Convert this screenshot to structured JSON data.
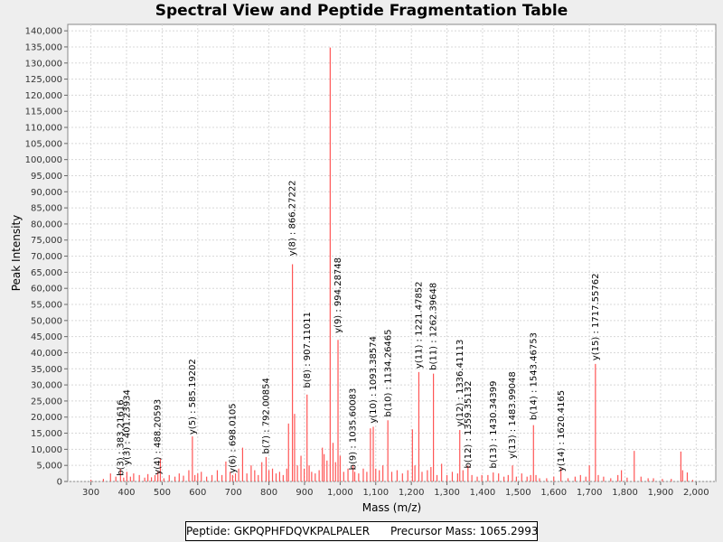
{
  "chart_data": {
    "type": "bar",
    "title": "Spectral View and Peptide Fragmentation Table",
    "xlabel": "Mass (m/z)",
    "ylabel": "Peak Intensity",
    "xlim": [
      235,
      2055
    ],
    "ylim": [
      0,
      142000
    ],
    "xticks": [
      300,
      400,
      500,
      600,
      700,
      800,
      900,
      1000,
      1100,
      1200,
      1300,
      1400,
      1500,
      1600,
      1700,
      1800,
      1900,
      2000
    ],
    "yticks": [
      0,
      5000,
      10000,
      15000,
      20000,
      25000,
      30000,
      35000,
      40000,
      45000,
      50000,
      55000,
      60000,
      65000,
      70000,
      75000,
      80000,
      85000,
      90000,
      95000,
      100000,
      105000,
      110000,
      115000,
      120000,
      125000,
      130000,
      135000,
      140000
    ],
    "grid": true,
    "color": "#ff5555",
    "peaks": [
      [
        300,
        500
      ],
      [
        335,
        800
      ],
      [
        355,
        2500
      ],
      [
        370,
        1500
      ],
      [
        383,
        4000
      ],
      [
        392,
        1200
      ],
      [
        401,
        3000
      ],
      [
        411,
        1500
      ],
      [
        420,
        2500
      ],
      [
        436,
        2000
      ],
      [
        451,
        1200
      ],
      [
        460,
        2300
      ],
      [
        470,
        1300
      ],
      [
        480,
        2000
      ],
      [
        488,
        3000
      ],
      [
        495,
        7200
      ],
      [
        505,
        1000
      ],
      [
        520,
        2000
      ],
      [
        536,
        1500
      ],
      [
        548,
        2500
      ],
      [
        560,
        1800
      ],
      [
        575,
        3500
      ],
      [
        585,
        14000
      ],
      [
        592,
        2000
      ],
      [
        600,
        2500
      ],
      [
        610,
        3000
      ],
      [
        625,
        1500
      ],
      [
        640,
        2000
      ],
      [
        655,
        3500
      ],
      [
        668,
        2000
      ],
      [
        679,
        6200
      ],
      [
        691,
        3000
      ],
      [
        698,
        2000
      ],
      [
        706,
        2500
      ],
      [
        715,
        4000
      ],
      [
        726,
        10500
      ],
      [
        738,
        2500
      ],
      [
        750,
        5000
      ],
      [
        760,
        3500
      ],
      [
        770,
        2000
      ],
      [
        780,
        6000
      ],
      [
        792,
        7600
      ],
      [
        800,
        3500
      ],
      [
        810,
        4000
      ],
      [
        820,
        2500
      ],
      [
        830,
        3000
      ],
      [
        840,
        2000
      ],
      [
        850,
        4000
      ],
      [
        855,
        18000
      ],
      [
        866,
        67500
      ],
      [
        872,
        21000
      ],
      [
        880,
        5000
      ],
      [
        890,
        8000
      ],
      [
        899,
        4000
      ],
      [
        907,
        27000
      ],
      [
        913,
        5000
      ],
      [
        920,
        3000
      ],
      [
        930,
        2500
      ],
      [
        941,
        3500
      ],
      [
        950,
        10500
      ],
      [
        955,
        8500
      ],
      [
        963,
        6500
      ],
      [
        972,
        134800
      ],
      [
        980,
        12000
      ],
      [
        987,
        6000
      ],
      [
        994,
        44000
      ],
      [
        1000,
        8000
      ],
      [
        1010,
        3000
      ],
      [
        1022,
        4000
      ],
      [
        1036,
        5000
      ],
      [
        1041,
        3000
      ],
      [
        1052,
        2500
      ],
      [
        1065,
        4000
      ],
      [
        1075,
        3000
      ],
      [
        1085,
        16500
      ],
      [
        1093,
        17000
      ],
      [
        1100,
        4000
      ],
      [
        1110,
        3500
      ],
      [
        1120,
        5000
      ],
      [
        1134,
        19000
      ],
      [
        1145,
        3000
      ],
      [
        1160,
        3500
      ],
      [
        1175,
        2500
      ],
      [
        1190,
        3500
      ],
      [
        1203,
        16200
      ],
      [
        1210,
        5000
      ],
      [
        1221,
        34000
      ],
      [
        1230,
        3000
      ],
      [
        1245,
        3500
      ],
      [
        1255,
        4500
      ],
      [
        1262,
        33500
      ],
      [
        1272,
        2000
      ],
      [
        1285,
        5500
      ],
      [
        1300,
        2000
      ],
      [
        1315,
        3000
      ],
      [
        1330,
        2500
      ],
      [
        1336,
        16000
      ],
      [
        1345,
        3500
      ],
      [
        1359,
        5000
      ],
      [
        1370,
        2000
      ],
      [
        1385,
        1500
      ],
      [
        1398,
        2000
      ],
      [
        1415,
        2000
      ],
      [
        1430,
        2800
      ],
      [
        1445,
        2500
      ],
      [
        1460,
        1500
      ],
      [
        1472,
        2000
      ],
      [
        1484,
        5000
      ],
      [
        1495,
        1500
      ],
      [
        1510,
        2500
      ],
      [
        1525,
        1500
      ],
      [
        1535,
        2000
      ],
      [
        1543,
        17500
      ],
      [
        1550,
        2000
      ],
      [
        1560,
        1000
      ],
      [
        1580,
        1000
      ],
      [
        1600,
        1500
      ],
      [
        1620,
        4000
      ],
      [
        1640,
        1000
      ],
      [
        1660,
        1500
      ],
      [
        1675,
        2000
      ],
      [
        1690,
        1500
      ],
      [
        1700,
        5000
      ],
      [
        1717,
        36500
      ],
      [
        1725,
        2000
      ],
      [
        1740,
        1500
      ],
      [
        1760,
        1000
      ],
      [
        1780,
        2000
      ],
      [
        1790,
        3500
      ],
      [
        1806,
        1200
      ],
      [
        1826,
        9500
      ],
      [
        1845,
        1500
      ],
      [
        1865,
        1000
      ],
      [
        1880,
        1000
      ],
      [
        1905,
        800
      ],
      [
        1930,
        800
      ],
      [
        1957,
        9300
      ],
      [
        1962,
        3500
      ],
      [
        1975,
        2800
      ],
      [
        1990,
        500
      ]
    ],
    "annotations": [
      {
        "label": "b(3) : 383.21616",
        "x": 383.2,
        "y": 1200
      },
      {
        "label": "y(3) : 401.23934",
        "x": 401.2,
        "y": 4500
      },
      {
        "label": "y(4) : 488.20593",
        "x": 488.2,
        "y": 1500
      },
      {
        "label": "y(5) : 585.19202",
        "x": 585.2,
        "y": 14000
      },
      {
        "label": "y(6) : 698.0105",
        "x": 698.0,
        "y": 2000
      },
      {
        "label": "b(7) : 792.00854",
        "x": 792.0,
        "y": 8000
      },
      {
        "label": "y(8) : 866.27222",
        "x": 866.3,
        "y": 69500
      },
      {
        "label": "b(8) : 907.11011",
        "x": 907.1,
        "y": 28500
      },
      {
        "label": "y(9) : 994.28748",
        "x": 994.3,
        "y": 45500
      },
      {
        "label": "b(9) : 1035.60083",
        "x": 1035.6,
        "y": 3000
      },
      {
        "label": "y(10) : 1093.38574",
        "x": 1093.4,
        "y": 17500
      },
      {
        "label": "b(10) : 1134.26465",
        "x": 1134.3,
        "y": 19500
      },
      {
        "label": "y(11) : 1221.47852",
        "x": 1221.5,
        "y": 34500
      },
      {
        "label": "b(11) : 1262.39648",
        "x": 1262.4,
        "y": 34000
      },
      {
        "label": "y(12) : 1336.41113",
        "x": 1336.4,
        "y": 16500
      },
      {
        "label": "b(12) : 1359.35132",
        "x": 1359.4,
        "y": 3500
      },
      {
        "label": "b(13) : 1430.34399",
        "x": 1430.3,
        "y": 3500
      },
      {
        "label": "y(13) : 1483.99048",
        "x": 1484.0,
        "y": 6500
      },
      {
        "label": "b(14) : 1543.46753",
        "x": 1543.5,
        "y": 18500
      },
      {
        "label": "y(14) : 1620.4165",
        "x": 1620.4,
        "y": 2500
      },
      {
        "label": "y(15) : 1717.55762",
        "x": 1717.6,
        "y": 37000
      }
    ]
  },
  "footer": {
    "peptide_label": "Peptide: GKPQPHFDQVKPALPALER",
    "precursor_label": "Precursor Mass: 1065.2993"
  }
}
